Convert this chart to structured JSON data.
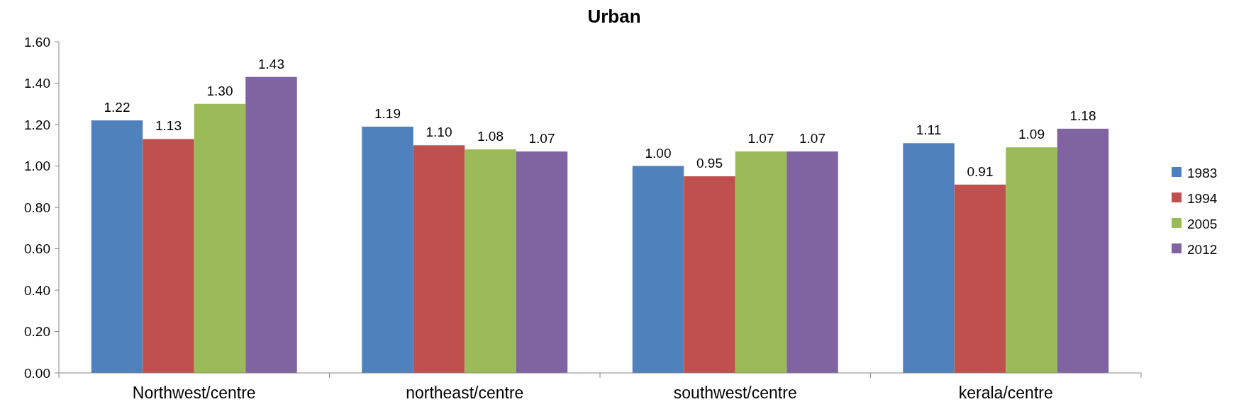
{
  "chart_data": {
    "type": "bar",
    "title": "Urban",
    "categories": [
      "Northwest/centre",
      "northeast/centre",
      "southwest/centre",
      "kerala/centre"
    ],
    "series": [
      {
        "name": "1983",
        "color": "#4f81bd",
        "values": [
          1.22,
          1.19,
          1.0,
          1.11
        ],
        "value_labels": [
          "1.22",
          "1.19",
          "1.00",
          "1.11"
        ]
      },
      {
        "name": "1994",
        "color": "#c0504d",
        "values": [
          1.13,
          1.1,
          0.95,
          0.91
        ],
        "value_labels": [
          "1.13",
          "1.10",
          "0.95",
          "0.91"
        ]
      },
      {
        "name": "2005",
        "color": "#9bbb59",
        "values": [
          1.3,
          1.08,
          1.07,
          1.09
        ],
        "value_labels": [
          "1.30",
          "1.08",
          "1.07",
          "1.09"
        ]
      },
      {
        "name": "2012",
        "color": "#8064a2",
        "values": [
          1.43,
          1.07,
          1.07,
          1.18
        ],
        "value_labels": [
          "1.43",
          "1.07",
          "1.07",
          "1.18"
        ]
      }
    ],
    "ylim": [
      0,
      1.6
    ],
    "yticks": [
      {
        "value": 0,
        "label": "0.00"
      },
      {
        "value": 0.2,
        "label": "0.20"
      },
      {
        "value": 0.4,
        "label": "0.40"
      },
      {
        "value": 0.6,
        "label": "0.60"
      },
      {
        "value": 0.8,
        "label": "0.80"
      },
      {
        "value": 1.0,
        "label": "1.00"
      },
      {
        "value": 1.2,
        "label": "1.20"
      },
      {
        "value": 1.4,
        "label": "1.40"
      },
      {
        "value": 1.6,
        "label": "1.60"
      }
    ],
    "legend": "right",
    "grid": false
  }
}
